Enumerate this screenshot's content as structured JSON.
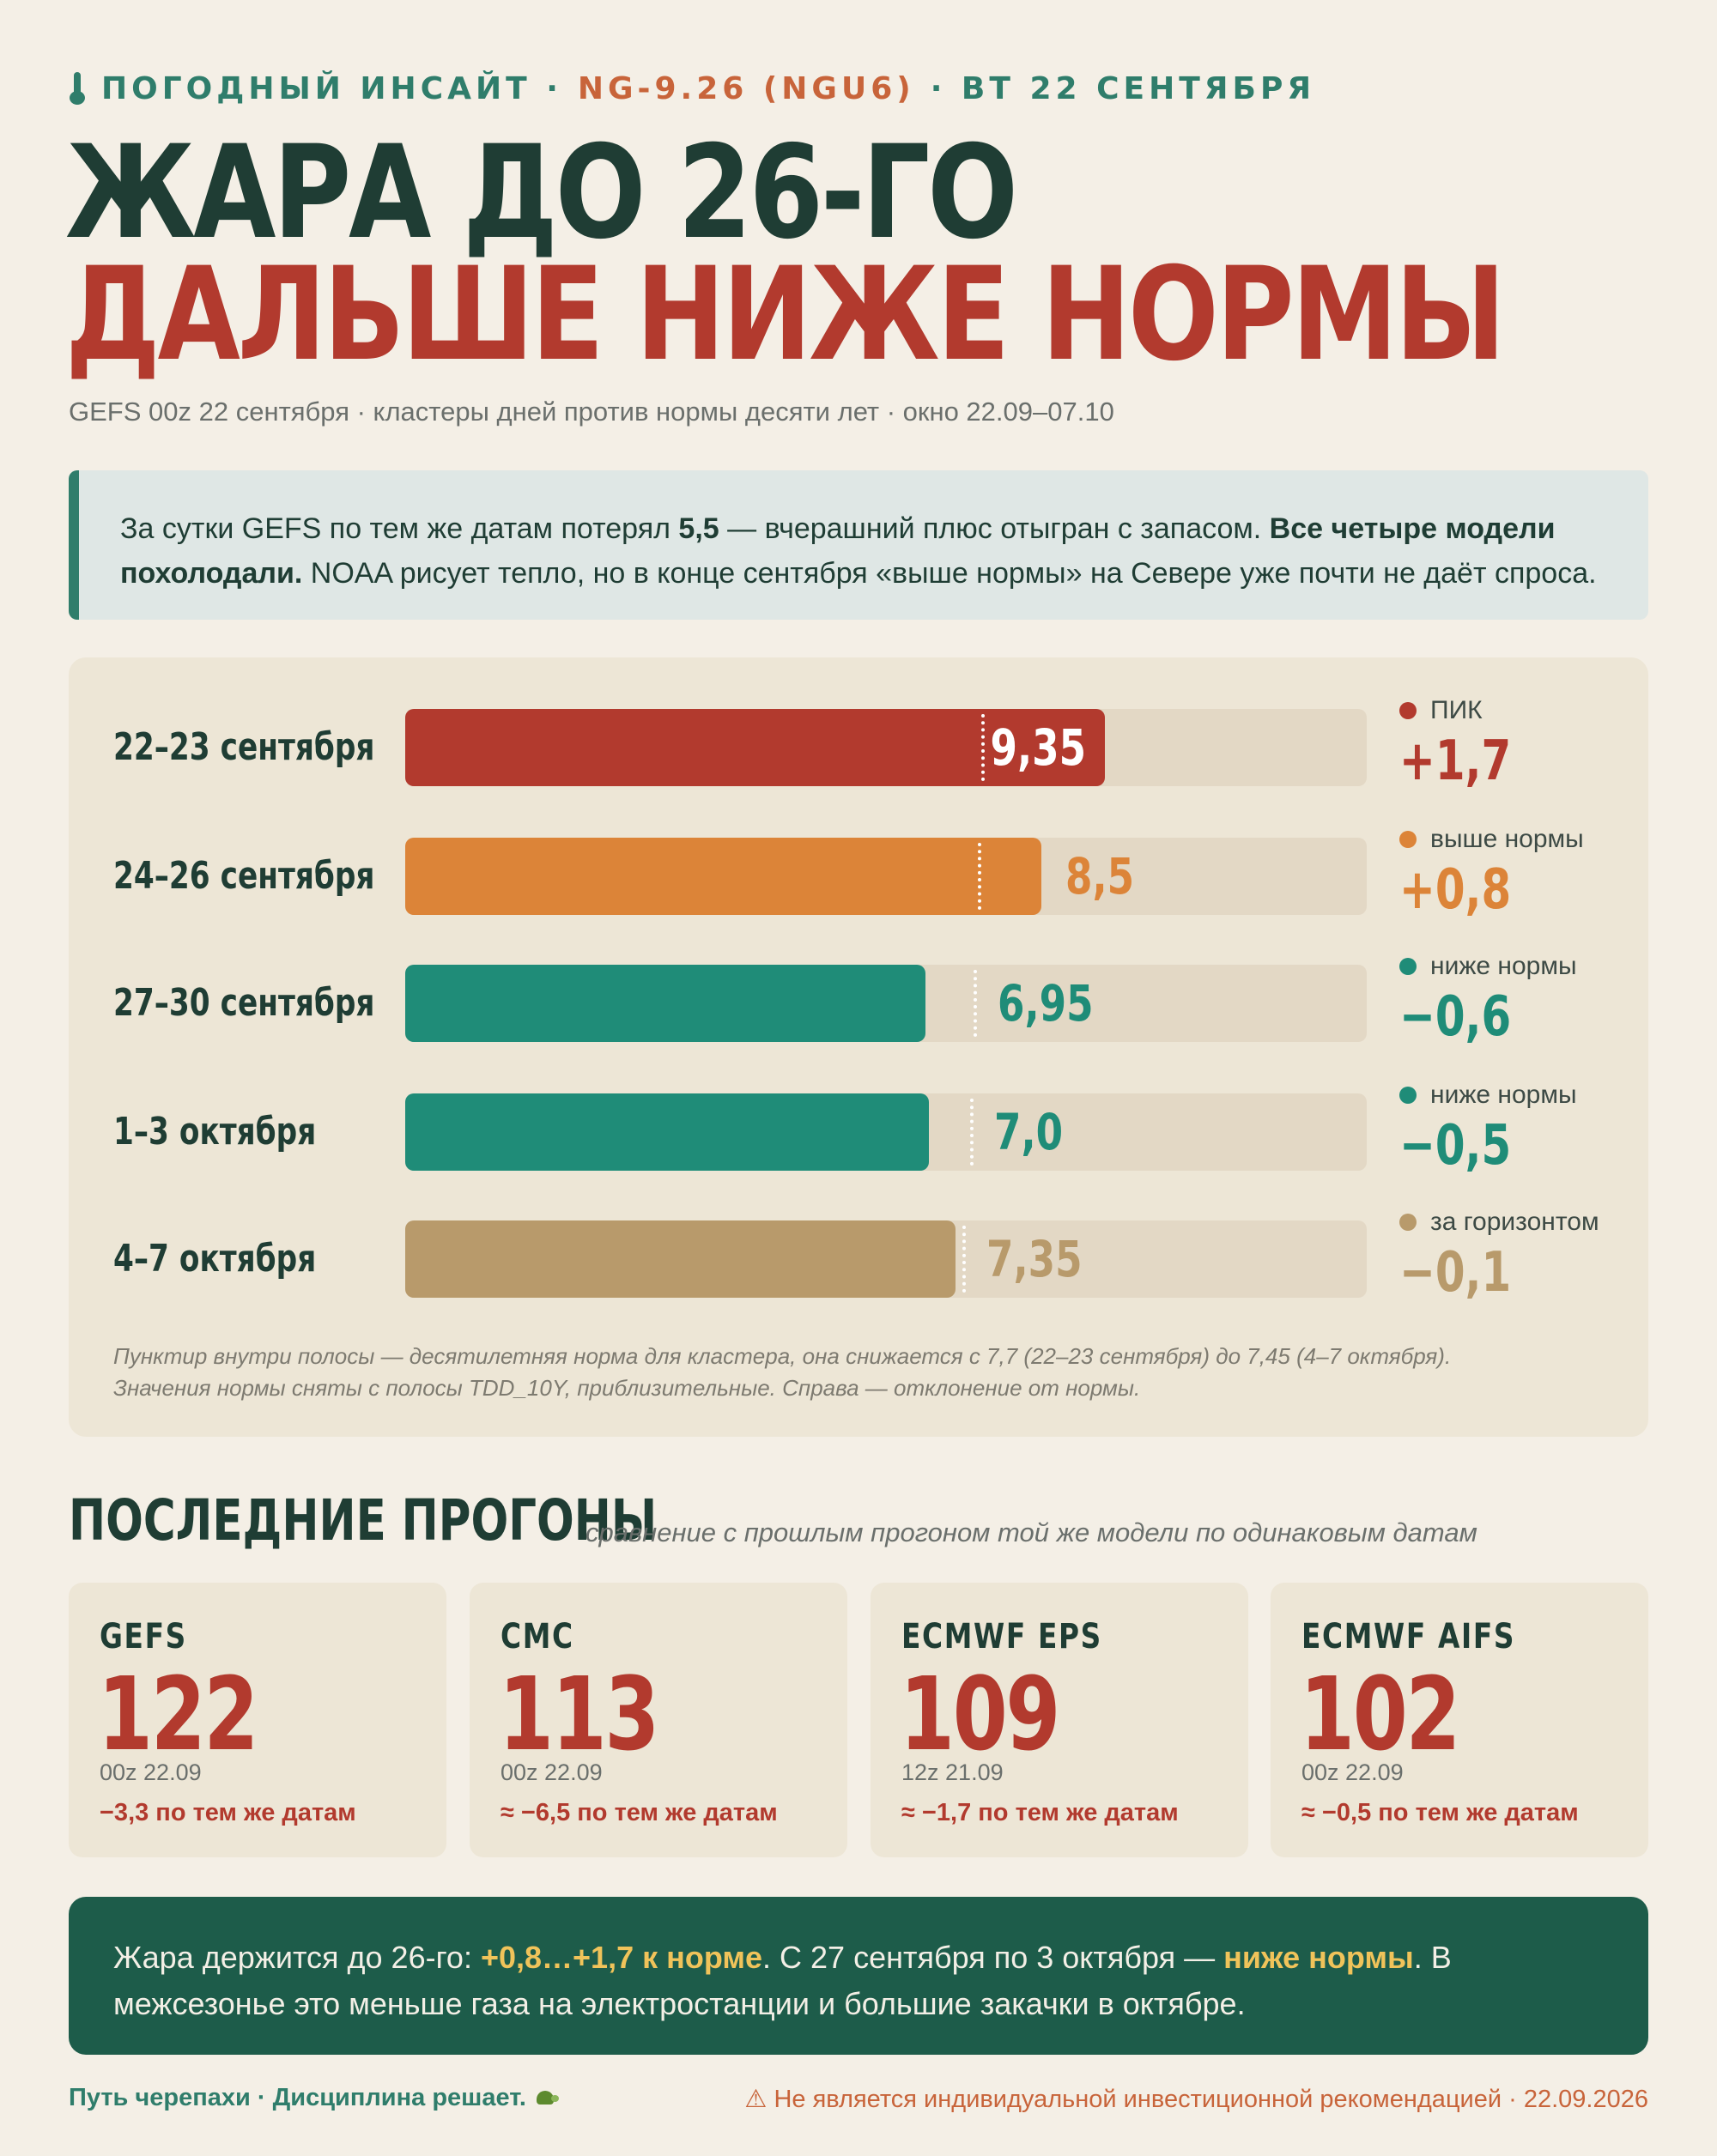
{
  "header": {
    "kicker_prefix": "ПОГОДНЫЙ ИНСАЙТ ·",
    "kicker_ticker": "NG-9.26 (NGU6)",
    "kicker_date": "· ВТ 22 СЕНТЯБРЯ",
    "title_line1": "ЖАРА ДО 26-ГО",
    "title_line2": "ДАЛЬШЕ НИЖЕ НОРМЫ",
    "subtitle": "GEFS 00z 22 сентября · кластеры дней против нормы десяти лет · окно 22.09–07.10"
  },
  "callout": {
    "t1": "За сутки GEFS по тем же датам потерял ",
    "b1": "5,5",
    "t2": " — вчерашний плюс отыгран с запасом. ",
    "b2": "Все четыре модели похолодали.",
    "t3": " NOAA рисует тепло, но в конце сентября «выше нормы» на Севере уже почти не даёт спроса."
  },
  "chart_data": {
    "type": "bar",
    "orientation": "horizontal",
    "scale_max": 12.85,
    "categories": [
      "22–23 сентября",
      "24–26 сентября",
      "27–30 сентября",
      "1–3 октября",
      "4–7 октября"
    ],
    "values": [
      9.35,
      8.5,
      6.95,
      7.0,
      7.35
    ],
    "value_labels": [
      "9,35",
      "8,5",
      "6,95",
      "7,0",
      "7,35"
    ],
    "norms": [
      7.7,
      7.65,
      7.6,
      7.55,
      7.45
    ],
    "deviation_labels": [
      "+1,7",
      "+0,8",
      "−0,6",
      "−0,5",
      "−0,1"
    ],
    "status_labels": [
      "ПИК",
      "выше нормы",
      "ниже нормы",
      "ниже нормы",
      "за горизонтом"
    ],
    "colors": [
      "#b23a2e",
      "#dc8438",
      "#1f8c78",
      "#1f8c78",
      "#b89a6b"
    ],
    "label_colors": [
      "#b23a2e",
      "#dc8438",
      "#1f8c78",
      "#1f8c78",
      "#b89a6b"
    ],
    "note_line1": "Пунктир внутри полосы — десятилетняя норма для кластера, она снижается с 7,7 (22–23 сентября) до 7,45 (4–7 октября).",
    "note_line2": "Значения нормы сняты с полосы TDD_10Y, приблизительные. Справа — отклонение от нормы."
  },
  "runs": {
    "title": "ПОСЛЕДНИЕ ПРОГОНЫ",
    "subtitle": "сравнение с прошлым прогоном той же модели по одинаковым датам",
    "cards": [
      {
        "model": "GEFS",
        "value": "122",
        "run": "00z 22.09",
        "delta": "−3,3 по тем же датам"
      },
      {
        "model": "CMC",
        "value": "113",
        "run": "00z 22.09",
        "delta": "≈ −6,5 по тем же датам"
      },
      {
        "model": "ECMWF EPS",
        "value": "109",
        "run": "12z 21.09",
        "delta": "≈ −1,7 по тем же датам"
      },
      {
        "model": "ECMWF AIFS",
        "value": "102",
        "run": "00z 22.09",
        "delta": "≈ −0,5 по тем же датам"
      }
    ]
  },
  "conclusion": {
    "t1": "Жара держится до 26-го: ",
    "h1": "+0,8…+1,7 к норме",
    "t2": ". С 27 сентября по 3 октября — ",
    "h2": "ниже нормы",
    "t3": ". В межсезонье это меньше газа на электростанции и большие закачки в октябре."
  },
  "footer": {
    "left": "Путь черепахи · Дисциплина решает.",
    "right": "⚠ Не является индивидуальной инвестиционной рекомендацией · 22.09.2026"
  },
  "icons": {
    "kicker": "thermometer-icon",
    "footer": "turtle-icon"
  }
}
